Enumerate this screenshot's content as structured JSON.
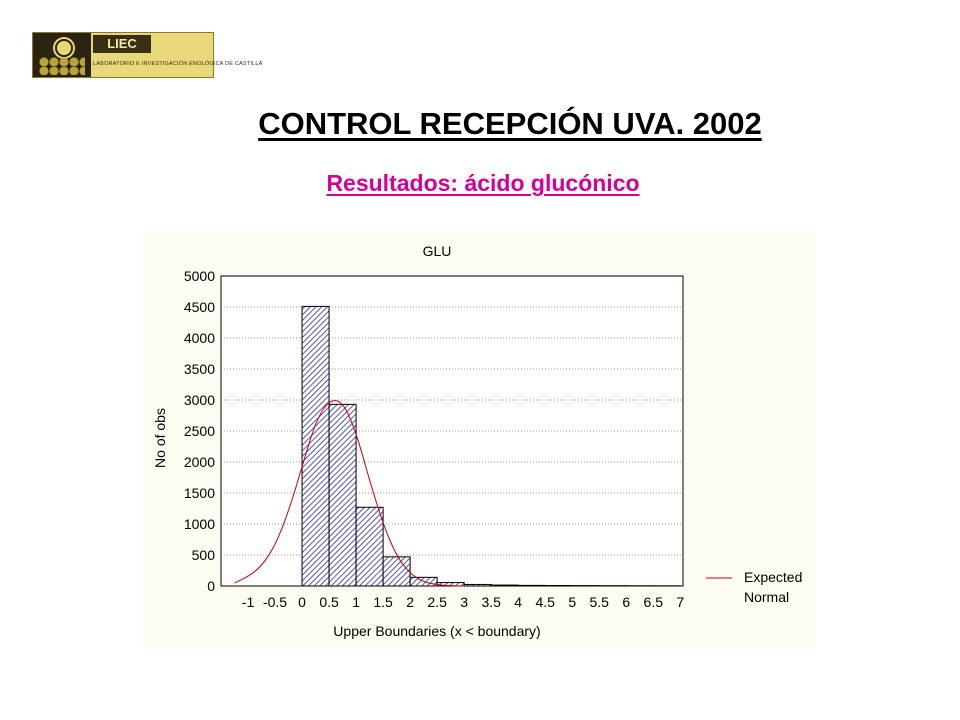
{
  "logo": {
    "brand": "LIEC",
    "subtitle": "LABORATORIO E INVESTIGACIÓN ENOLÓGICA DE CASTILLA"
  },
  "page": {
    "title": "CONTROL RECEPCIÓN UVA. 2002",
    "subtitle": "Resultados: ácido glucónico"
  },
  "colors": {
    "bar_fill": "#2a2aa0",
    "normal_curve": "#cc0000",
    "subtitle": "#d4009a"
  },
  "chart_data": {
    "type": "bar",
    "title": "GLU",
    "xlabel": "Upper Boundaries (x < boundary)",
    "ylabel": "No of obs",
    "ylim": [
      0,
      5000
    ],
    "yticks": [
      0,
      500,
      1000,
      1500,
      2000,
      2500,
      3000,
      3500,
      4000,
      4500,
      5000
    ],
    "xticks": [
      "-1",
      "-0.5",
      "0",
      "0.5",
      "1",
      "1.5",
      "2",
      "2.5",
      "3",
      "3.5",
      "4",
      "4.5",
      "5",
      "5.5",
      "6",
      "6.5",
      "7"
    ],
    "x_upper_boundaries": [
      -1,
      -0.5,
      0,
      0.5,
      1,
      1.5,
      2,
      2.5,
      3,
      3.5,
      4,
      4.5,
      5,
      5.5,
      6,
      6.5,
      7
    ],
    "values": [
      0,
      0,
      0,
      4510,
      2930,
      1270,
      470,
      140,
      55,
      25,
      15,
      10,
      8,
      6,
      5,
      4,
      3
    ],
    "bin_width": 0.5,
    "grid": true,
    "legend_position": "bottom-right",
    "series": [
      {
        "name": "Expected Normal",
        "type": "line",
        "x": [
          -1.25,
          -1,
          -0.75,
          -0.5,
          -0.25,
          0,
          0.25,
          0.5,
          0.75,
          1,
          1.25,
          1.5,
          1.75,
          2,
          2.25,
          2.5,
          2.75,
          3
        ],
        "y": [
          50,
          150,
          320,
          650,
          1200,
          1920,
          2650,
          3000,
          2980,
          2480,
          1700,
          1000,
          480,
          200,
          65,
          20,
          5,
          0
        ]
      }
    ],
    "legend": [
      "Expected",
      "Normal"
    ]
  }
}
